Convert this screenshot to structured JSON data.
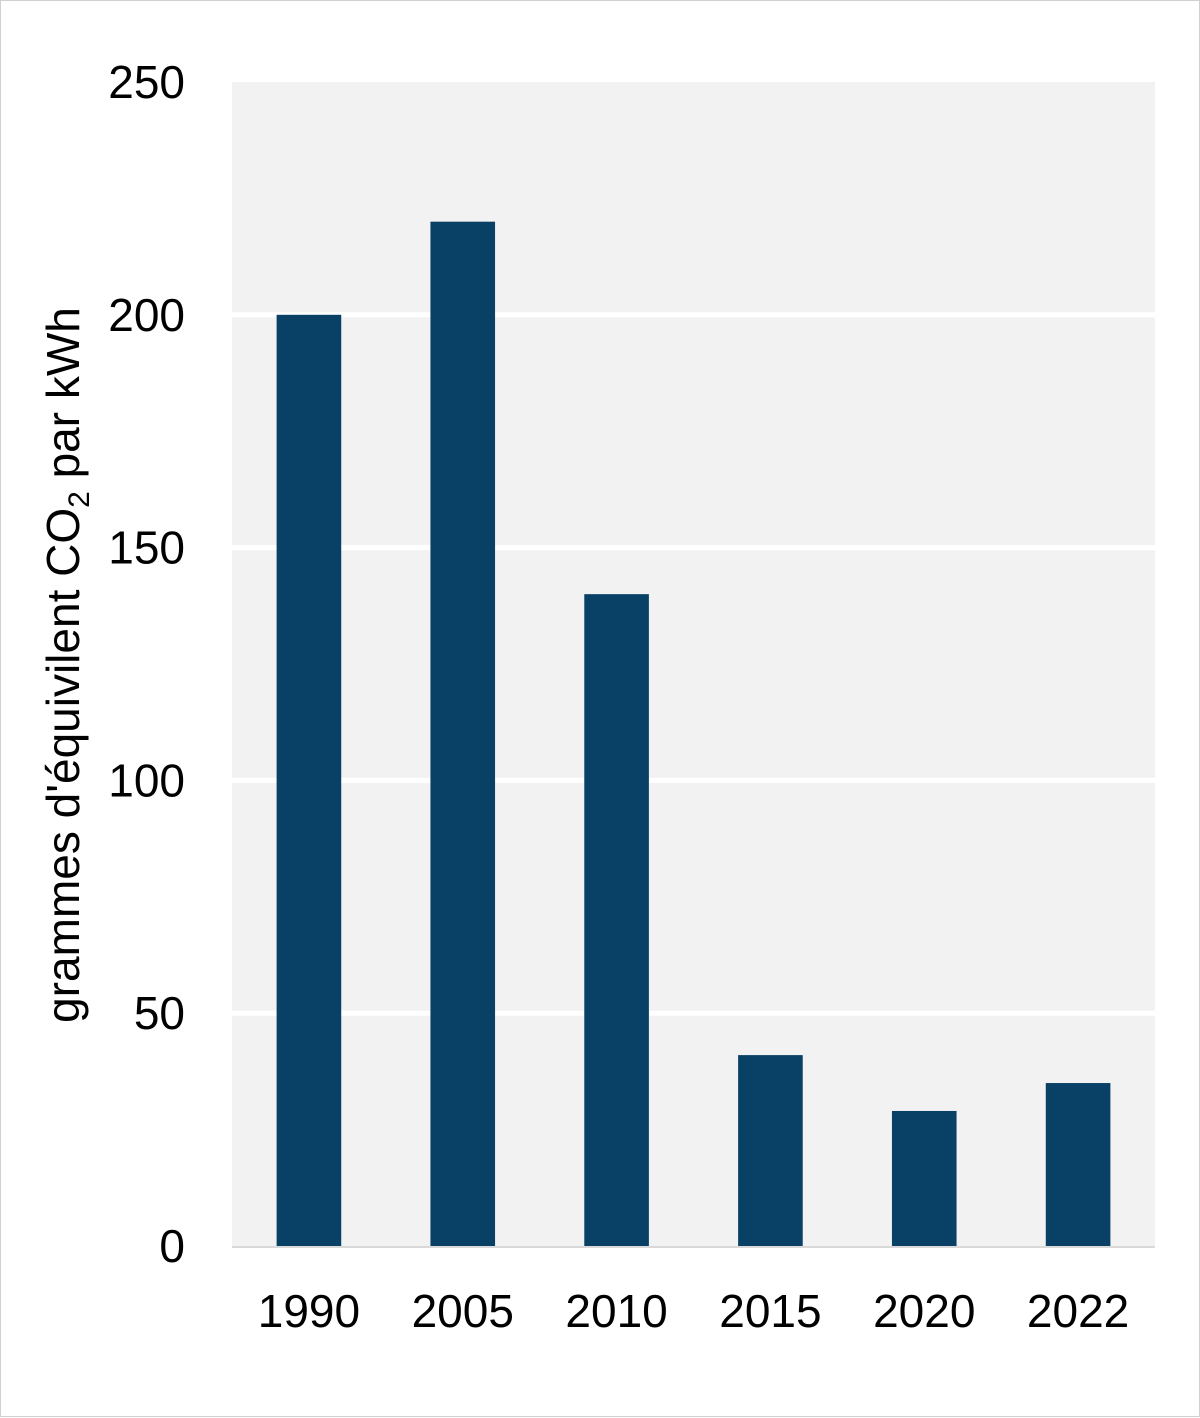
{
  "chart_data": {
    "type": "bar",
    "categories": [
      "1990",
      "2005",
      "2010",
      "2015",
      "2020",
      "2022"
    ],
    "values": [
      200,
      220,
      140,
      41,
      29,
      35
    ],
    "title": "",
    "xlabel": "",
    "ylabel": {
      "before": "grammes d'équivilent CO",
      "subscript": "2",
      "after": " par kWh"
    },
    "ylim": [
      0,
      250
    ],
    "yticks": [
      "0",
      "50",
      "100",
      "150",
      "200",
      "250"
    ],
    "grid": true,
    "colors": {
      "bar": "#084066",
      "plot_background": "#f2f2f2",
      "gridline": "#ffffff"
    }
  }
}
